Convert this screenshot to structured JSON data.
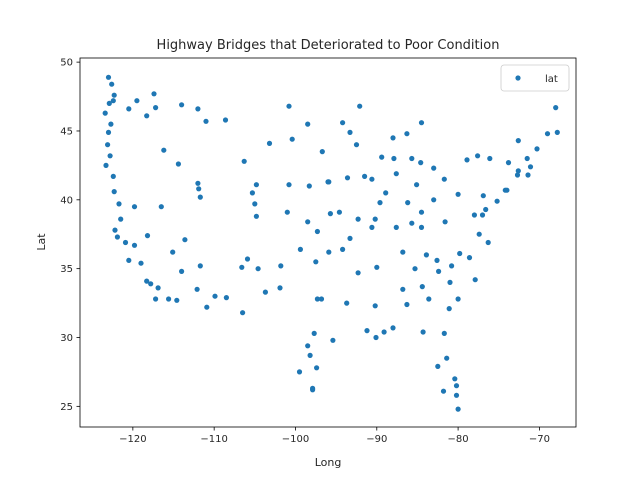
{
  "chart_data": {
    "type": "scatter",
    "title": "Highway Bridges that Deteriorated to Poor Condition",
    "xlabel": "Long",
    "ylabel": "Lat",
    "xlim": [
      -126.5,
      -65.5
    ],
    "ylim": [
      23.5,
      50.3
    ],
    "xticks": [
      -120,
      -110,
      -100,
      -90,
      -80,
      -70
    ],
    "xtick_labels": [
      "−120",
      "−110",
      "−100",
      "−90",
      "−80",
      "−70"
    ],
    "yticks": [
      25,
      30,
      35,
      40,
      45,
      50
    ],
    "ytick_labels": [
      "25",
      "30",
      "35",
      "40",
      "45",
      "50"
    ],
    "legend": {
      "position": "top-right",
      "entries": [
        "lat"
      ]
    },
    "grid": false,
    "series": [
      {
        "name": "lat",
        "color": "#1f77b4",
        "marker": "circle",
        "points": [
          [
            -123.0,
            48.9
          ],
          [
            -122.6,
            48.4
          ],
          [
            -122.3,
            47.6
          ],
          [
            -122.4,
            47.2
          ],
          [
            -122.9,
            47.0
          ],
          [
            -123.4,
            46.3
          ],
          [
            -122.7,
            45.5
          ],
          [
            -123.0,
            44.9
          ],
          [
            -123.1,
            44.0
          ],
          [
            -122.8,
            43.2
          ],
          [
            -123.3,
            42.5
          ],
          [
            -122.4,
            41.7
          ],
          [
            -122.3,
            40.6
          ],
          [
            -121.7,
            39.7
          ],
          [
            -121.5,
            38.6
          ],
          [
            -122.2,
            37.8
          ],
          [
            -121.9,
            37.3
          ],
          [
            -120.9,
            36.9
          ],
          [
            -119.8,
            36.7
          ],
          [
            -120.5,
            35.6
          ],
          [
            -119.0,
            35.4
          ],
          [
            -118.3,
            34.1
          ],
          [
            -117.8,
            33.9
          ],
          [
            -117.2,
            32.8
          ],
          [
            -116.9,
            33.6
          ],
          [
            -115.6,
            32.8
          ],
          [
            -114.6,
            32.7
          ],
          [
            -114.0,
            34.8
          ],
          [
            -112.1,
            33.5
          ],
          [
            -110.9,
            32.2
          ],
          [
            -111.7,
            35.2
          ],
          [
            -109.9,
            33.0
          ],
          [
            -108.5,
            32.9
          ],
          [
            -106.6,
            35.1
          ],
          [
            -105.9,
            35.7
          ],
          [
            -106.5,
            31.8
          ],
          [
            -104.6,
            35.0
          ],
          [
            -103.7,
            33.3
          ],
          [
            -104.8,
            38.8
          ],
          [
            -105.0,
            39.7
          ],
          [
            -105.3,
            40.5
          ],
          [
            -104.8,
            41.1
          ],
          [
            -106.3,
            42.8
          ],
          [
            -108.6,
            45.8
          ],
          [
            -111.0,
            45.7
          ],
          [
            -112.0,
            46.6
          ],
          [
            -114.0,
            46.9
          ],
          [
            -116.2,
            43.6
          ],
          [
            -117.2,
            46.7
          ],
          [
            -117.4,
            47.7
          ],
          [
            -119.5,
            47.2
          ],
          [
            -120.5,
            46.6
          ],
          [
            -118.3,
            46.1
          ],
          [
            -114.4,
            42.6
          ],
          [
            -112.0,
            41.2
          ],
          [
            -111.9,
            40.8
          ],
          [
            -111.7,
            40.2
          ],
          [
            -113.6,
            37.1
          ],
          [
            -115.1,
            36.2
          ],
          [
            -119.8,
            39.5
          ],
          [
            -118.2,
            37.4
          ],
          [
            -116.5,
            39.5
          ],
          [
            -100.8,
            46.8
          ],
          [
            -98.5,
            45.5
          ],
          [
            -96.7,
            43.5
          ],
          [
            -100.4,
            44.4
          ],
          [
            -103.2,
            44.1
          ],
          [
            -98.3,
            41.0
          ],
          [
            -96.0,
            41.3
          ],
          [
            -100.8,
            41.1
          ],
          [
            -97.3,
            37.7
          ],
          [
            -95.7,
            39.0
          ],
          [
            -98.5,
            38.4
          ],
          [
            -101.0,
            39.1
          ],
          [
            -97.5,
            35.5
          ],
          [
            -95.9,
            36.2
          ],
          [
            -99.4,
            36.4
          ],
          [
            -97.3,
            32.8
          ],
          [
            -96.8,
            32.8
          ],
          [
            -97.7,
            30.3
          ],
          [
            -95.4,
            29.8
          ],
          [
            -98.5,
            29.4
          ],
          [
            -101.8,
            35.2
          ],
          [
            -101.9,
            33.6
          ],
          [
            -97.4,
            27.8
          ],
          [
            -97.9,
            26.2
          ],
          [
            -99.5,
            27.5
          ],
          [
            -94.6,
            39.1
          ],
          [
            -92.3,
            38.6
          ],
          [
            -90.2,
            38.6
          ],
          [
            -93.3,
            37.2
          ],
          [
            -93.6,
            41.6
          ],
          [
            -91.5,
            41.7
          ],
          [
            -95.9,
            41.3
          ],
          [
            -90.6,
            41.5
          ],
          [
            -93.3,
            44.9
          ],
          [
            -92.1,
            46.8
          ],
          [
            -94.2,
            45.6
          ],
          [
            -92.5,
            44.0
          ],
          [
            -89.4,
            43.1
          ],
          [
            -87.9,
            43.0
          ],
          [
            -88.0,
            44.5
          ],
          [
            -87.6,
            41.9
          ],
          [
            -88.9,
            40.5
          ],
          [
            -89.6,
            39.8
          ],
          [
            -90.6,
            38.0
          ],
          [
            -86.2,
            39.8
          ],
          [
            -85.1,
            41.1
          ],
          [
            -87.6,
            38.0
          ],
          [
            -85.7,
            38.3
          ],
          [
            -84.5,
            38.0
          ],
          [
            -83.0,
            40.0
          ],
          [
            -81.7,
            41.5
          ],
          [
            -84.5,
            39.1
          ],
          [
            -83.0,
            42.3
          ],
          [
            -84.6,
            42.7
          ],
          [
            -85.7,
            43.0
          ],
          [
            -86.3,
            44.8
          ],
          [
            -84.5,
            45.6
          ],
          [
            -86.8,
            36.2
          ],
          [
            -85.3,
            35.0
          ],
          [
            -90.0,
            35.1
          ],
          [
            -83.9,
            36.0
          ],
          [
            -86.8,
            33.5
          ],
          [
            -88.0,
            30.7
          ],
          [
            -86.3,
            32.4
          ],
          [
            -90.2,
            32.3
          ],
          [
            -89.1,
            30.4
          ],
          [
            -91.2,
            30.5
          ],
          [
            -90.1,
            30.0
          ],
          [
            -93.7,
            32.5
          ],
          [
            -92.3,
            34.7
          ],
          [
            -94.2,
            36.4
          ],
          [
            -84.4,
            33.7
          ],
          [
            -81.1,
            32.1
          ],
          [
            -83.6,
            32.8
          ],
          [
            -81.0,
            34.0
          ],
          [
            -80.0,
            32.8
          ],
          [
            -82.4,
            34.8
          ],
          [
            -80.8,
            35.2
          ],
          [
            -78.6,
            35.8
          ],
          [
            -77.9,
            34.2
          ],
          [
            -79.8,
            36.1
          ],
          [
            -82.6,
            35.6
          ],
          [
            -77.4,
            37.5
          ],
          [
            -76.3,
            36.9
          ],
          [
            -78.0,
            38.9
          ],
          [
            -81.6,
            38.4
          ],
          [
            -80.0,
            40.4
          ],
          [
            -76.9,
            40.3
          ],
          [
            -75.2,
            39.9
          ],
          [
            -77.0,
            38.9
          ],
          [
            -76.6,
            39.3
          ],
          [
            -74.2,
            40.7
          ],
          [
            -74.0,
            40.7
          ],
          [
            -73.8,
            42.7
          ],
          [
            -76.1,
            43.0
          ],
          [
            -78.9,
            42.9
          ],
          [
            -77.6,
            43.2
          ],
          [
            -72.7,
            41.8
          ],
          [
            -71.4,
            41.8
          ],
          [
            -71.1,
            42.4
          ],
          [
            -72.6,
            42.1
          ],
          [
            -71.5,
            43.0
          ],
          [
            -72.6,
            44.3
          ],
          [
            -70.3,
            43.7
          ],
          [
            -69.0,
            44.8
          ],
          [
            -68.0,
            46.7
          ],
          [
            -67.8,
            44.9
          ],
          [
            -81.7,
            30.3
          ],
          [
            -82.5,
            27.9
          ],
          [
            -80.2,
            25.8
          ],
          [
            -81.4,
            28.5
          ],
          [
            -84.3,
            30.4
          ],
          [
            -80.4,
            27.0
          ],
          [
            -80.2,
            26.5
          ],
          [
            -81.8,
            26.1
          ],
          [
            -80.0,
            24.8
          ],
          [
            -97.9,
            26.3
          ],
          [
            -98.2,
            28.7
          ]
        ]
      }
    ]
  }
}
